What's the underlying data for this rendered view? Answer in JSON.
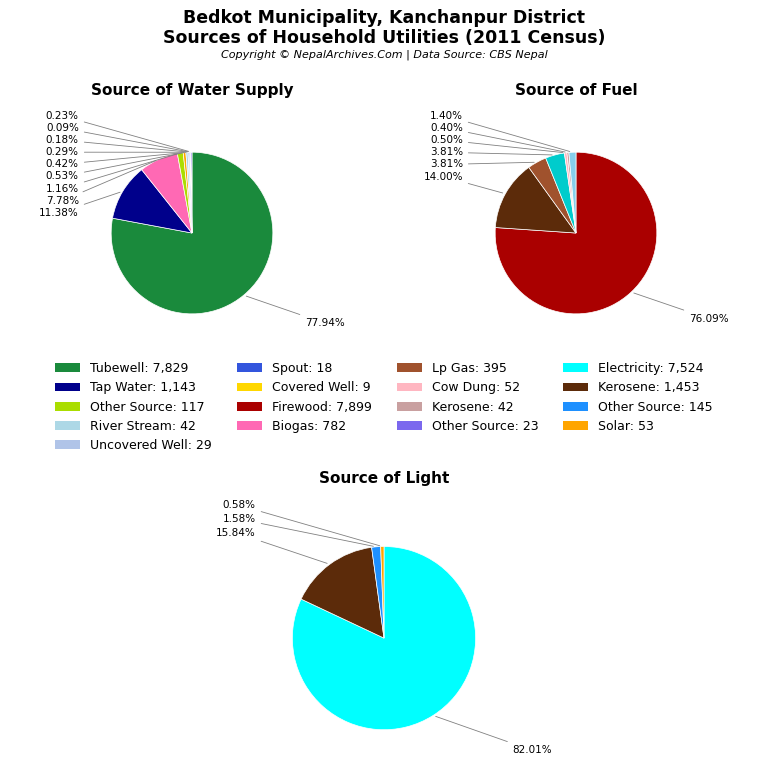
{
  "title": "Bedkot Municipality, Kanchanpur District",
  "subtitle": "Sources of Household Utilities (2011 Census)",
  "annotations": [
    "Copyright © NepalArchives.Com | Data Source: CBS Nepal"
  ],
  "legend": "center",
  "legend_entries": [
    {
      "name": "Tubewell: 7,829",
      "color": "#1a8a3c"
    },
    {
      "name": "Tap Water: 1,143",
      "color": "#00008B"
    },
    {
      "name": "Other Source: 117",
      "color": "#AADD00"
    },
    {
      "name": "River Stream: 42",
      "color": "#ADD8E6"
    },
    {
      "name": "Uncovered Well: 29",
      "color": "#B0C4E8"
    },
    {
      "name": "Spout: 18",
      "color": "#3355DD"
    },
    {
      "name": "Covered Well: 9",
      "color": "#FFD700"
    },
    {
      "name": "Firewood: 7,899",
      "color": "#AA0000"
    },
    {
      "name": "Biogas: 782",
      "color": "#FF69B4"
    },
    {
      "name": "Lp Gas: 395",
      "color": "#A0522D"
    },
    {
      "name": "Cow Dung: 52",
      "color": "#FFB6C1"
    },
    {
      "name": "Kerosene: 42",
      "color": "#C9A0A0"
    },
    {
      "name": "Other Source: 23",
      "color": "#7B68EE"
    },
    {
      "name": "Electricity: 7,524",
      "color": "#00FFFF"
    },
    {
      "name": "Kerosene: 1,453",
      "color": "#5C2B0A"
    },
    {
      "name": "Other Source: 145",
      "color": "#1E90FF"
    },
    {
      "name": "Solar: 53",
      "color": "#FFA500"
    }
  ],
  "chart_data": [
    {
      "type": "pie",
      "title": "Source of Water Supply",
      "values": [
        77.94,
        11.38,
        7.78,
        1.16,
        0.53,
        0.42,
        0.29,
        0.18,
        0.09,
        0.23
      ],
      "value_labels": [
        "77.94%",
        "11.38%",
        "7.78%",
        "1.16%",
        "0.53%",
        "0.42%",
        "0.29%",
        "0.18%",
        "0.09%",
        "0.23%"
      ],
      "colors": [
        "#1a8a3c",
        "#00008B",
        "#FF69B4",
        "#AADD00",
        "#FFA500",
        "#ADD8E6",
        "#B0C4E8",
        "#3355DD",
        "#FFD700",
        "#7B68EE"
      ],
      "data_labels": true
    },
    {
      "type": "pie",
      "title": "Source of Fuel",
      "values": [
        76.09,
        14.0,
        3.81,
        3.81,
        0.5,
        0.4,
        1.4
      ],
      "value_labels": [
        "76.09%",
        "14.00%",
        "3.81%",
        "3.81%",
        "0.50%",
        "0.40%",
        "1.40%"
      ],
      "colors": [
        "#AA0000",
        "#5C2B0A",
        "#A0522D",
        "#00CCCC",
        "#FFB6C1",
        "#C9A0A0",
        "#87CEEB"
      ],
      "data_labels": true
    },
    {
      "type": "pie",
      "title": "Source of Light",
      "values": [
        82.01,
        15.84,
        1.58,
        0.58
      ],
      "value_labels": [
        "82.01%",
        "15.84%",
        "1.58%",
        "0.58%"
      ],
      "colors": [
        "#00FFFF",
        "#5C2B0A",
        "#1E90FF",
        "#FFA500"
      ],
      "data_labels": true
    }
  ]
}
